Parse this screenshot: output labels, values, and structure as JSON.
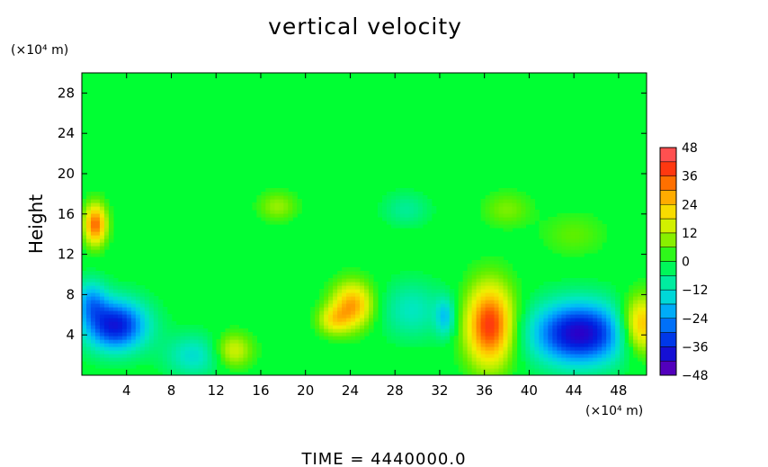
{
  "chart_data": {
    "type": "heatmap",
    "title": "vertical velocity",
    "ylabel": "Height",
    "xlabel": "",
    "y_unit_label": "(×10⁴ m)",
    "x_unit_label": "(×10⁴ m)",
    "xlim": [
      0,
      50.5
    ],
    "ylim": [
      0,
      30
    ],
    "x_ticks": [
      "4",
      "8",
      "12",
      "16",
      "20",
      "24",
      "28",
      "32",
      "36",
      "40",
      "44",
      "48"
    ],
    "x_tick_values": [
      4,
      8,
      12,
      16,
      20,
      24,
      28,
      32,
      36,
      40,
      44,
      48
    ],
    "y_ticks": [
      "4",
      "8",
      "12",
      "16",
      "20",
      "24",
      "28"
    ],
    "y_tick_values": [
      4,
      8,
      12,
      16,
      20,
      24,
      28
    ],
    "colorbar": {
      "min": -48,
      "max": 48,
      "tick_labels": [
        "48",
        "36",
        "24",
        "12",
        "0",
        "−12",
        "−24",
        "−36",
        "−48"
      ],
      "tick_values": [
        48,
        36,
        24,
        12,
        0,
        -12,
        -24,
        -36,
        -48
      ],
      "colors": [
        [
          -48,
          "#7a00b0"
        ],
        [
          -42,
          "#2a00c8"
        ],
        [
          -36,
          "#0020e0"
        ],
        [
          -30,
          "#0050f0"
        ],
        [
          -24,
          "#0090ff"
        ],
        [
          -18,
          "#00c8f0"
        ],
        [
          -12,
          "#00e8c0"
        ],
        [
          -6,
          "#00f080"
        ],
        [
          0,
          "#00ff33"
        ],
        [
          6,
          "#5cf000"
        ],
        [
          12,
          "#b4f000"
        ],
        [
          18,
          "#f0f000"
        ],
        [
          24,
          "#ffc800"
        ],
        [
          30,
          "#ff9000"
        ],
        [
          36,
          "#ff5000"
        ],
        [
          42,
          "#ff2020"
        ],
        [
          48,
          "#ff8080"
        ]
      ]
    },
    "features": [
      {
        "x": 1.2,
        "y": 15.0,
        "value": 34,
        "sx": 0.7,
        "sy": 1.4
      },
      {
        "x": 3.0,
        "y": 5.0,
        "value": -38,
        "sx": 2.0,
        "sy": 1.8
      },
      {
        "x": 0.8,
        "y": 7.5,
        "value": -18,
        "sx": 1.0,
        "sy": 1.5
      },
      {
        "x": 10.0,
        "y": 2.0,
        "value": -14,
        "sx": 1.8,
        "sy": 1.5
      },
      {
        "x": 13.5,
        "y": 2.5,
        "value": 16,
        "sx": 1.2,
        "sy": 1.2
      },
      {
        "x": 24.2,
        "y": 7.0,
        "value": 28,
        "sx": 1.3,
        "sy": 1.6
      },
      {
        "x": 22.5,
        "y": 5.5,
        "value": 16,
        "sx": 1.0,
        "sy": 1.0
      },
      {
        "x": 29.5,
        "y": 6.5,
        "value": -12,
        "sx": 2.0,
        "sy": 2.0
      },
      {
        "x": 32.5,
        "y": 5.8,
        "value": -16,
        "sx": 0.6,
        "sy": 1.4
      },
      {
        "x": 36.5,
        "y": 5.0,
        "value": 40,
        "sx": 1.5,
        "sy": 2.8
      },
      {
        "x": 44.5,
        "y": 4.2,
        "value": -42,
        "sx": 3.0,
        "sy": 2.2
      },
      {
        "x": 50.0,
        "y": 5.0,
        "value": 30,
        "sx": 1.3,
        "sy": 2.0
      },
      {
        "x": 17.5,
        "y": 16.8,
        "value": 10,
        "sx": 1.2,
        "sy": 1.0
      },
      {
        "x": 29.0,
        "y": 16.5,
        "value": -8,
        "sx": 1.5,
        "sy": 1.2
      },
      {
        "x": 38.0,
        "y": 16.5,
        "value": 8,
        "sx": 1.5,
        "sy": 1.2
      },
      {
        "x": 44.0,
        "y": 14.0,
        "value": 6,
        "sx": 2.0,
        "sy": 1.5
      }
    ]
  },
  "footer": {
    "time_label": "TIME  =  4440000.0"
  }
}
